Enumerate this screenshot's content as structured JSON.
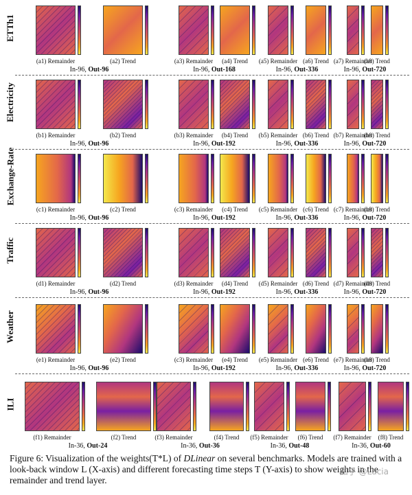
{
  "rows": [
    {
      "label": "ETTh1",
      "letter": "a",
      "pad": "",
      "groups": [
        {
          "prefix": "In-96, ",
          "bold": "Out-96",
          "panels": [
            "(a1) Remainder",
            "(a2) Trend"
          ]
        },
        {
          "prefix": "In-96, ",
          "bold": "Out-168",
          "panels": [
            "(a3) Remainder",
            "(a4) Trend"
          ]
        },
        {
          "prefix": "In-96, ",
          "bold": "Out-336",
          "panels": [
            "(a5) Remainder",
            "(a6) Trend"
          ]
        },
        {
          "prefix": "In-96, ",
          "bold": "Out-720",
          "panels": [
            "(a7) Remainder",
            "(a8) Trend"
          ]
        }
      ]
    },
    {
      "label": "Electricity",
      "letter": "b",
      "pad": "",
      "groups": [
        {
          "prefix": "In-96, ",
          "bold": "Out-96",
          "panels": [
            "(b1) Remainder",
            "(b2) Trend"
          ]
        },
        {
          "prefix": "In-96, ",
          "bold": "Out-192",
          "panels": [
            "(b3) Remainder",
            "(b4) Trend"
          ]
        },
        {
          "prefix": "In-96, ",
          "bold": "Out-336",
          "panels": [
            "(b5) Remainder",
            "(b6) Trend"
          ]
        },
        {
          "prefix": "In-96, ",
          "bold": "Out-720",
          "panels": [
            "(b7) Remainder",
            "(b8) Trend"
          ]
        }
      ]
    },
    {
      "label": "Exchange-Rate",
      "letter": "c",
      "pad": "",
      "groups": [
        {
          "prefix": "In-96, ",
          "bold": "Out-96",
          "panels": [
            "(c1) Remainder",
            "(c2) Trend"
          ]
        },
        {
          "prefix": "In-96, ",
          "bold": "Out-192",
          "panels": [
            "(c3) Remainder",
            "(c4) Trend"
          ]
        },
        {
          "prefix": "In-96, ",
          "bold": "Out-336",
          "panels": [
            "(c5) Remainder",
            "(c6) Trend"
          ]
        },
        {
          "prefix": "In-96, ",
          "bold": "Out-720",
          "panels": [
            "(c7) Remainder",
            "(c8) Trend"
          ]
        }
      ]
    },
    {
      "label": "Traffic",
      "letter": "d",
      "pad": "",
      "groups": [
        {
          "prefix": "In-96, ",
          "bold": "Out-96",
          "panels": [
            "(d1) Remainder",
            "(d2) Trend"
          ]
        },
        {
          "prefix": "In-96, ",
          "bold": "Out-192",
          "panels": [
            "(d3) Remainder",
            "(d4) Trend"
          ]
        },
        {
          "prefix": "In-96, ",
          "bold": "Out-336",
          "panels": [
            "(d5) Remainder",
            "(d6) Trend"
          ]
        },
        {
          "prefix": "In-96, ",
          "bold": "Out-720",
          "panels": [
            "(d7) Remainder",
            "(d8) Trend"
          ]
        }
      ]
    },
    {
      "label": "Weather",
      "letter": "e",
      "pad": "",
      "groups": [
        {
          "prefix": "In-96, ",
          "bold": "Out-96",
          "panels": [
            "(e1) Remainder",
            "(e2) Trend"
          ]
        },
        {
          "prefix": "In-96, ",
          "bold": "Out-192",
          "panels": [
            "(c3) Remainder",
            "(e4) Trend"
          ]
        },
        {
          "prefix": "In-96, ",
          "bold": "Out-336",
          "panels": [
            "(e5) Remainder",
            "(e6) Trend"
          ]
        },
        {
          "prefix": "In-96, ",
          "bold": "Out-720",
          "panels": [
            "(e7) Remainder",
            "(e8) Trend"
          ]
        }
      ]
    },
    {
      "label": "ILI",
      "letter": "f",
      "pad": "",
      "groups": [
        {
          "prefix": "In-36, ",
          "bold": "Out-24",
          "panels": [
            "(f1) Remainder",
            "(f2) Trend"
          ]
        },
        {
          "prefix": "In-36, ",
          "bold": "Out-36",
          "panels": [
            "(f3) Remainder",
            "(f4) Trend"
          ]
        },
        {
          "prefix": "In-36, ",
          "bold": "Out-48",
          "panels": [
            "(f5) Remainder",
            "(f6) Trend"
          ]
        },
        {
          "prefix": "In-36, ",
          "bold": "Out-60",
          "panels": [
            "(f7) Remainder",
            "(f8) Trend"
          ]
        }
      ]
    }
  ],
  "caption": {
    "prefix": "Figure 6: Visualization of the weights(T*L) of ",
    "em": "DLinear",
    "suffix": " on several benchmarks. Models are trained with a look-back window L (X-axis) and different forecasting time steps T (Y-axis) to show weights in the remainder and trend layer."
  },
  "watermark": "知乎 @Lucia",
  "colors": {
    "dark": "#1a0c6b",
    "purple": "#7a1fa2",
    "magenta": "#b1367f",
    "orange": "#e3674a",
    "amber": "#f6a51f",
    "yellow": "#f3e84c"
  }
}
